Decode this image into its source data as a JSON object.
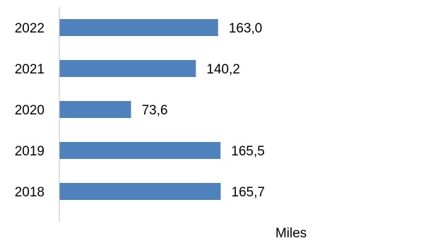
{
  "chart_data": {
    "type": "bar",
    "orientation": "horizontal",
    "categories": [
      "2022",
      "2021",
      "2020",
      "2019",
      "2018"
    ],
    "values": [
      163.0,
      140.2,
      73.6,
      165.5,
      165.7
    ],
    "value_labels": [
      "163,0",
      "140,2",
      "73,6",
      "165,5",
      "165,7"
    ],
    "xlabel": "Miles",
    "ylabel": "",
    "title": "",
    "grid": false,
    "legend": "none",
    "bar_color": "#4f81bd"
  }
}
